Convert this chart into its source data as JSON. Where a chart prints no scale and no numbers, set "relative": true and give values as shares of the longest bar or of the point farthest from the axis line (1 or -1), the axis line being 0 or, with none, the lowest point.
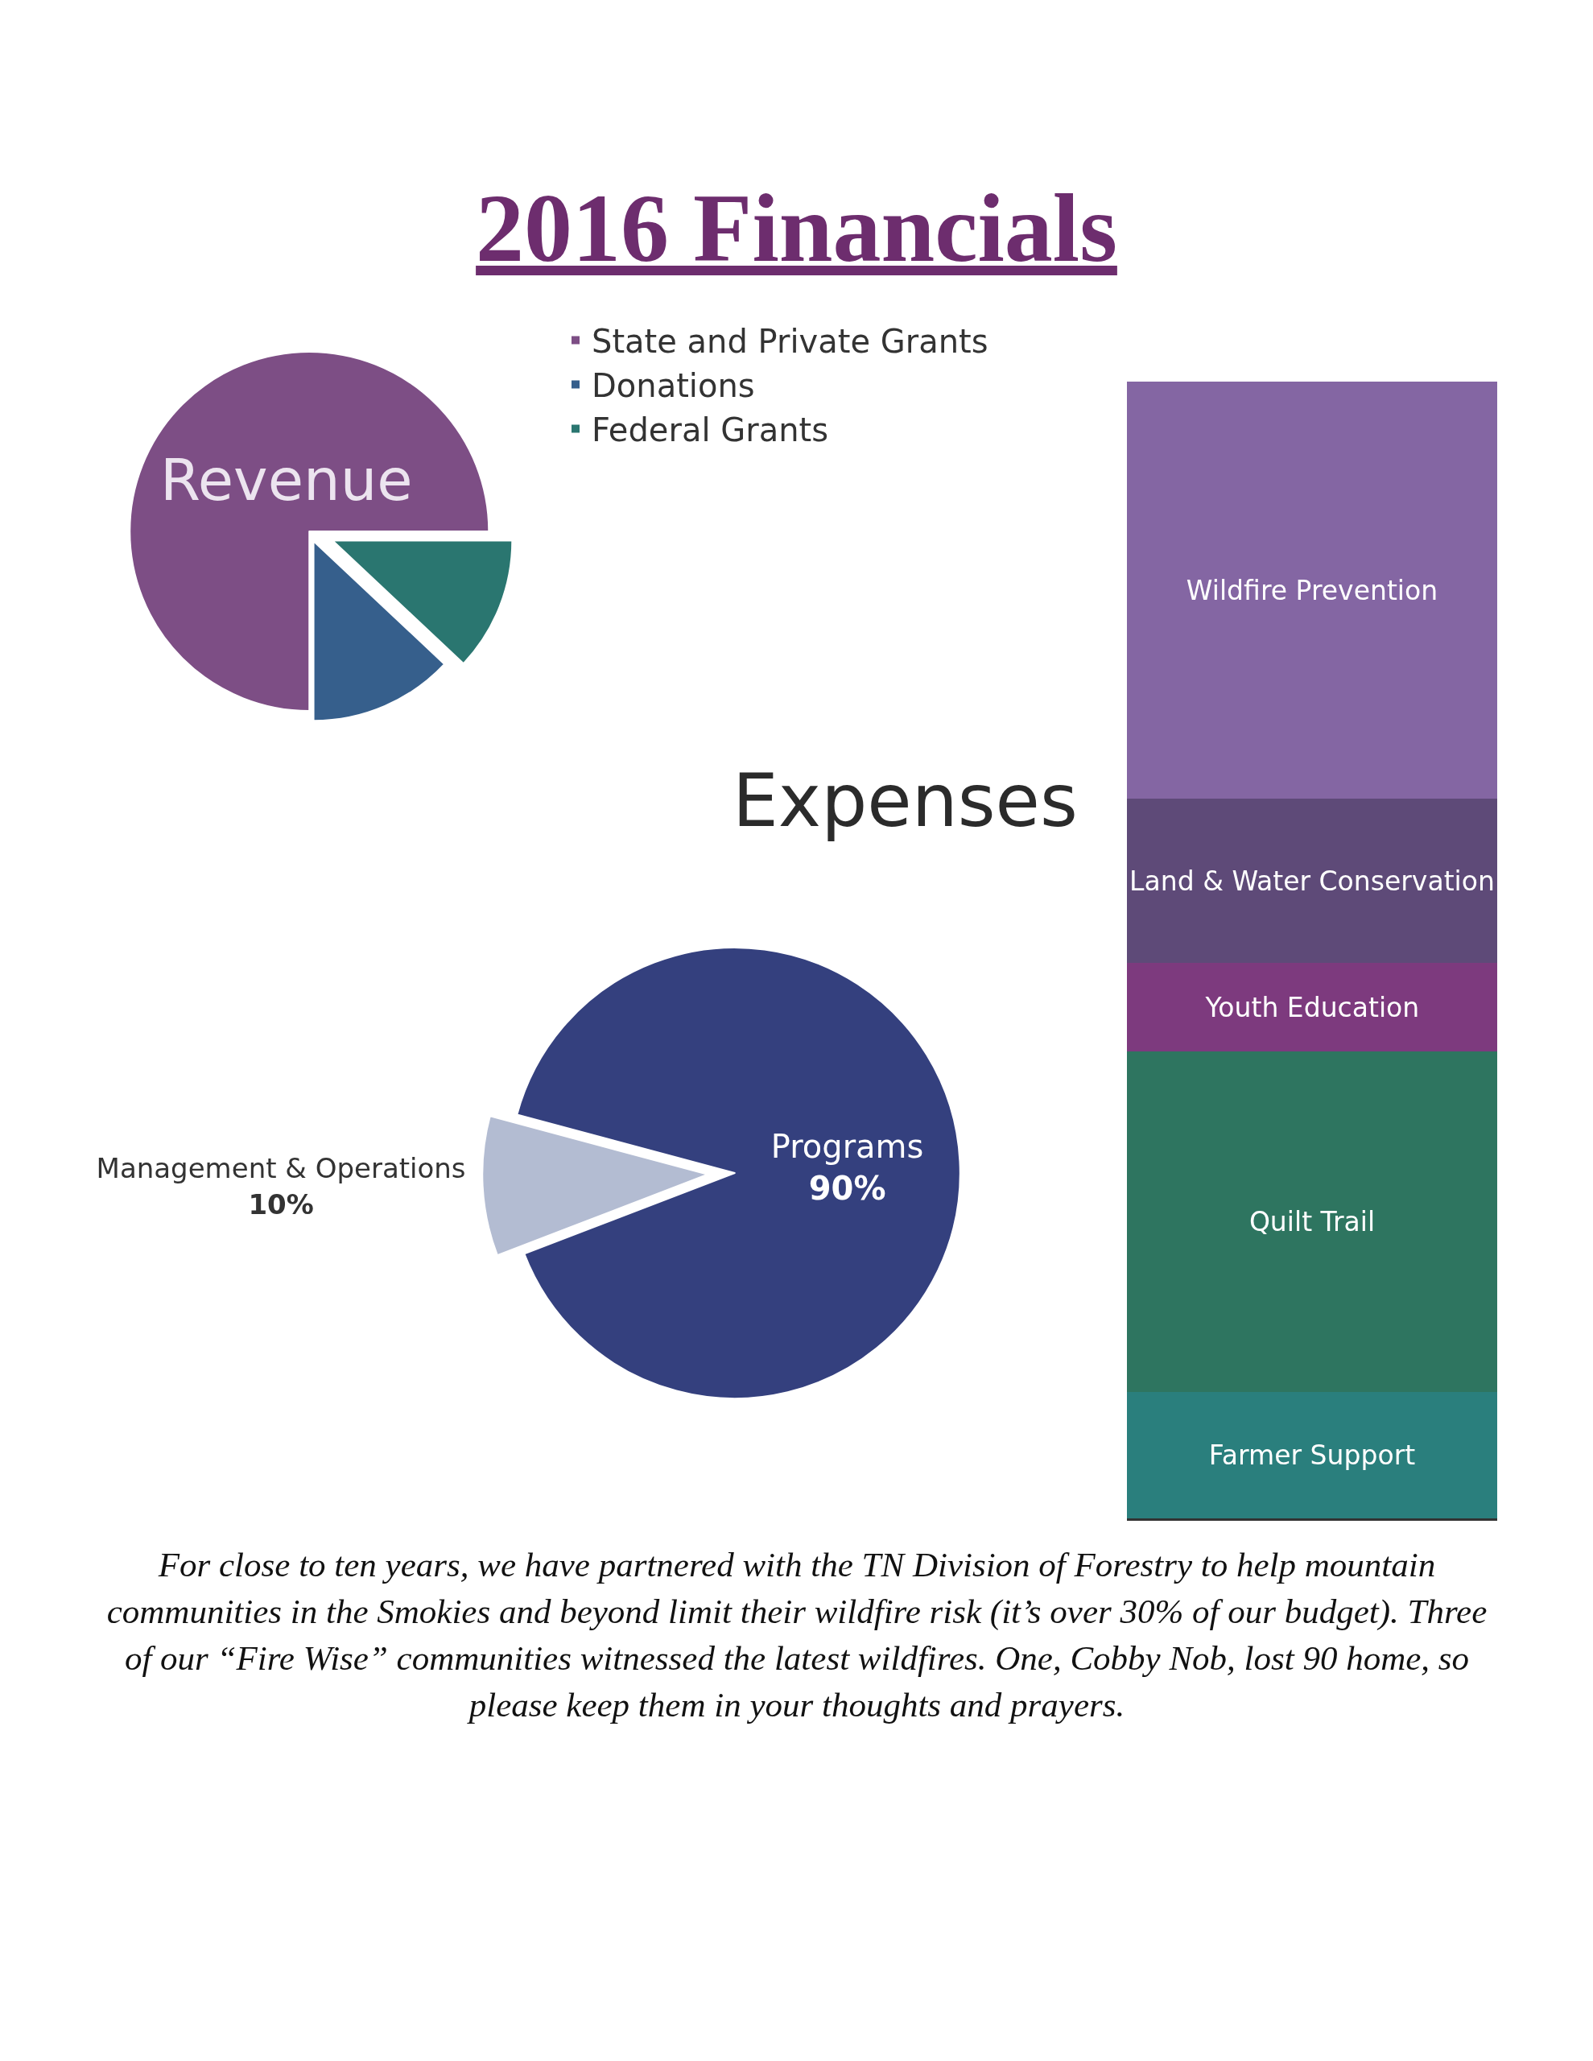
{
  "chart_data": [
    {
      "type": "pie",
      "title": "2016 Financials",
      "subtitle": "Revenue",
      "categories": [
        "State and Private Grants",
        "Donations",
        "Federal Grants"
      ],
      "values": [
        75,
        13,
        12
      ],
      "colors": [
        "#7d4e85",
        "#365f8c",
        "#2a7670"
      ],
      "legend": "right"
    },
    {
      "type": "pie",
      "title": "Expenses",
      "categories": [
        "Programs",
        "Management & Operations"
      ],
      "values": [
        90,
        10
      ],
      "value_labels": [
        "90%",
        "10%"
      ],
      "colors": [
        "#34407e",
        "#b3bcd2"
      ],
      "legend": false,
      "annotations": [
        "For close to ten years, we have partnered with the TN Division of Forestry to help mountain communities in the Smokies and beyond limit their wildfire risk (it’s over 30% of our budget). Three of our “Fire Wise” communities witnessed the latest wildfires. One, Cobby Nob, lost 90 home, so please keep them in your thoughts and prayers."
      ]
    },
    {
      "type": "bar",
      "stacked": true,
      "relative": true,
      "categories": [
        null
      ],
      "legend": false,
      "series": [
        {
          "name": "Farmer Support",
          "color": "#2a7f7d",
          "values": [
            0.111
          ]
        },
        {
          "name": "Quilt Trail",
          "color": "#2e7560",
          "values": [
            0.3
          ]
        },
        {
          "name": "Youth Education",
          "color": "#7d3a7e",
          "values": [
            0.078
          ]
        },
        {
          "name": "Land & Water Conservation",
          "color": "#5e4a78",
          "values": [
            0.144
          ]
        },
        {
          "name": "Wildfire Prevention",
          "color": "#8466a3",
          "values": [
            0.367
          ]
        }
      ]
    }
  ]
}
